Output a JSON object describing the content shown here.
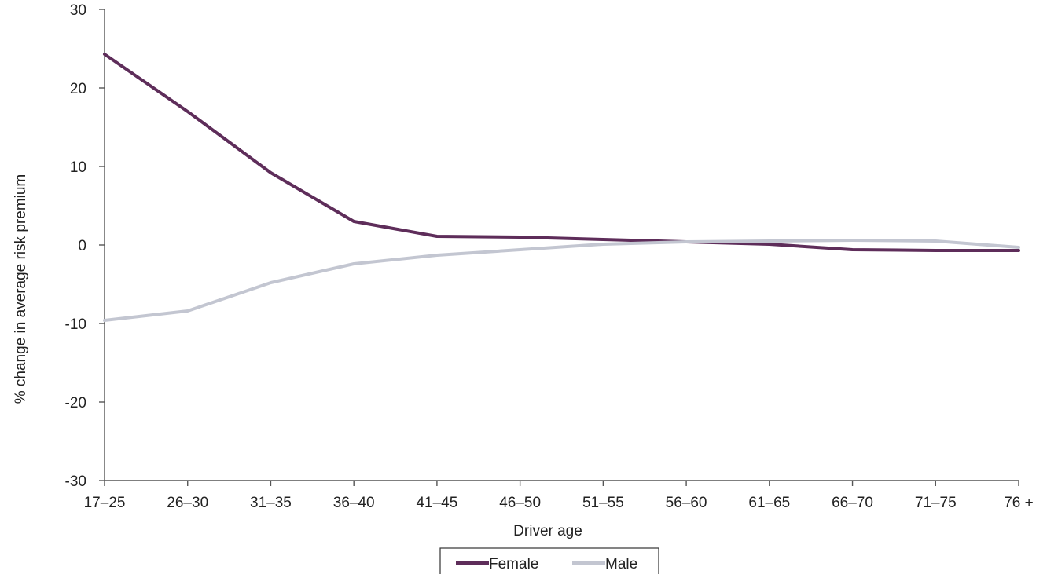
{
  "chart_data": {
    "type": "line",
    "title": "",
    "xlabel": "Driver age",
    "ylabel": "% change in average risk premium",
    "categories": [
      "17–25",
      "26–30",
      "31–35",
      "36–40",
      "41–45",
      "46–50",
      "51–55",
      "56–60",
      "61–65",
      "66–70",
      "71–75",
      "76 +"
    ],
    "ylim": [
      -30,
      30
    ],
    "yticks": [
      -30,
      -20,
      -10,
      0,
      10,
      20,
      30
    ],
    "grid": false,
    "legend_position": "bottom",
    "series": [
      {
        "name": "Female",
        "color": "#5e2d5a",
        "values": [
          24.3,
          17.0,
          9.2,
          3.0,
          1.1,
          1.0,
          0.7,
          0.4,
          0.1,
          -0.6,
          -0.7,
          -0.7
        ]
      },
      {
        "name": "Male",
        "color": "#c3c6d1",
        "values": [
          -9.6,
          -8.4,
          -4.8,
          -2.4,
          -1.3,
          -0.6,
          0.1,
          0.4,
          0.5,
          0.6,
          0.5,
          -0.3
        ]
      }
    ]
  }
}
